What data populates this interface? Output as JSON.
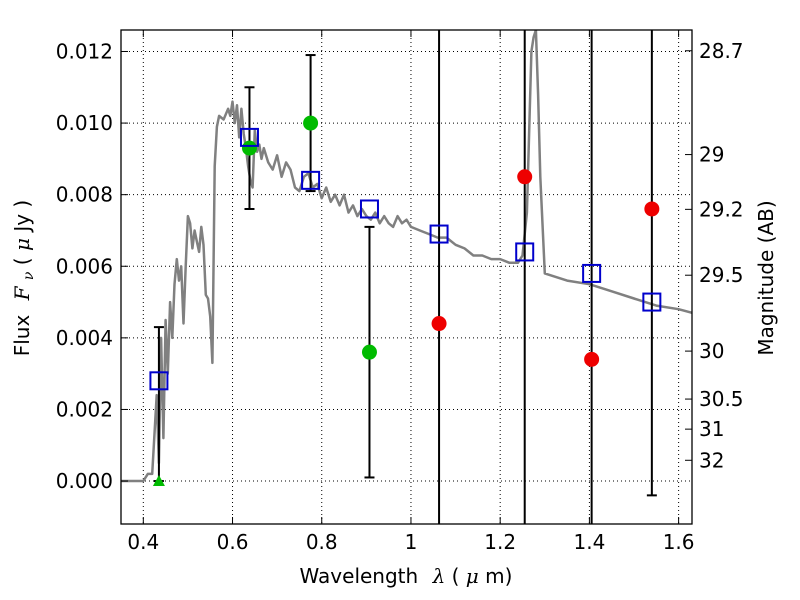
{
  "chart_data": {
    "type": "scatter",
    "xlabel": "Wavelength",
    "xlabel_symbol": "λ",
    "xlabel_unit_open": " (",
    "xlabel_unit_mu": "μ",
    "xlabel_unit_rest": "m)",
    "ylabel": "Flux",
    "ylabel_symbol": "F",
    "ylabel_sub": "ν",
    "ylabel_unit_open": " ( ",
    "ylabel_unit_mu": "μ",
    "ylabel_unit_rest": "Jy )",
    "y2label": "Magnitude (AB)",
    "xlim": [
      0.35,
      1.63
    ],
    "ylim": [
      -0.0012,
      0.0126
    ],
    "grid": true,
    "x_ticks": [
      0.4,
      0.6,
      0.8,
      1.0,
      1.2,
      1.4,
      1.6
    ],
    "x_tick_labels": [
      "0.4",
      "0.6",
      "0.8",
      "1",
      "1.2",
      "1.4",
      "1.6"
    ],
    "y_ticks": [
      0.0,
      0.002,
      0.004,
      0.006,
      0.008,
      0.01,
      0.012
    ],
    "y_tick_labels": [
      "0.000",
      "0.002",
      "0.004",
      "0.006",
      "0.008",
      "0.010",
      "0.012"
    ],
    "mag_ticks": [
      {
        "label": "28.7",
        "flux": 0.01202
      },
      {
        "label": "29",
        "flux": 0.00912
      },
      {
        "label": "29.2",
        "flux": 0.00759
      },
      {
        "label": "29.5",
        "flux": 0.00575
      },
      {
        "label": "30",
        "flux": 0.00363
      },
      {
        "label": "30.5",
        "flux": 0.00229
      },
      {
        "label": "31",
        "flux": 0.00145
      },
      {
        "label": "32",
        "flux": 0.00058
      }
    ],
    "model_sed": {
      "color": "#808080",
      "x": [
        0.35,
        0.4,
        0.41,
        0.42,
        0.43,
        0.435,
        0.44,
        0.445,
        0.45,
        0.455,
        0.46,
        0.465,
        0.47,
        0.475,
        0.48,
        0.485,
        0.49,
        0.495,
        0.5,
        0.505,
        0.51,
        0.515,
        0.52,
        0.525,
        0.53,
        0.535,
        0.54,
        0.545,
        0.55,
        0.555,
        0.56,
        0.565,
        0.57,
        0.58,
        0.59,
        0.595,
        0.6,
        0.605,
        0.61,
        0.615,
        0.62,
        0.625,
        0.63,
        0.635,
        0.64,
        0.645,
        0.65,
        0.655,
        0.66,
        0.665,
        0.67,
        0.68,
        0.69,
        0.7,
        0.71,
        0.72,
        0.73,
        0.74,
        0.75,
        0.76,
        0.77,
        0.78,
        0.79,
        0.8,
        0.81,
        0.82,
        0.83,
        0.84,
        0.85,
        0.86,
        0.87,
        0.88,
        0.89,
        0.9,
        0.91,
        0.92,
        0.93,
        0.94,
        0.95,
        0.96,
        0.97,
        0.98,
        0.99,
        1.0,
        1.02,
        1.04,
        1.06,
        1.08,
        1.1,
        1.12,
        1.14,
        1.16,
        1.18,
        1.2,
        1.22,
        1.24,
        1.25,
        1.26,
        1.265,
        1.27,
        1.275,
        1.28,
        1.285,
        1.29,
        1.3,
        1.35,
        1.4,
        1.45,
        1.5,
        1.55,
        1.6,
        1.63
      ],
      "y": [
        0.0,
        0.0,
        0.0002,
        0.0002,
        0.0024,
        0.0005,
        0.004,
        0.0012,
        0.0045,
        0.003,
        0.005,
        0.004,
        0.0055,
        0.0062,
        0.0056,
        0.006,
        0.0044,
        0.006,
        0.0074,
        0.0072,
        0.0065,
        0.007,
        0.0067,
        0.0064,
        0.0071,
        0.0066,
        0.0052,
        0.0051,
        0.0046,
        0.0033,
        0.0088,
        0.0099,
        0.0102,
        0.0101,
        0.0104,
        0.0102,
        0.0106,
        0.01,
        0.0105,
        0.0096,
        0.0104,
        0.0097,
        0.0093,
        0.0088,
        0.0084,
        0.0082,
        0.0098,
        0.0092,
        0.0094,
        0.009,
        0.0093,
        0.0089,
        0.0087,
        0.0091,
        0.0085,
        0.0089,
        0.0087,
        0.0082,
        0.0081,
        0.0085,
        0.0086,
        0.0082,
        0.0083,
        0.0079,
        0.0082,
        0.0078,
        0.008,
        0.0077,
        0.008,
        0.0075,
        0.0077,
        0.0074,
        0.0076,
        0.0074,
        0.0073,
        0.0075,
        0.0072,
        0.0074,
        0.0072,
        0.0071,
        0.0074,
        0.0072,
        0.0073,
        0.0071,
        0.007,
        0.0069,
        0.0068,
        0.0068,
        0.0066,
        0.0065,
        0.0063,
        0.0063,
        0.0062,
        0.0062,
        0.0061,
        0.0061,
        0.0063,
        0.0075,
        0.0098,
        0.012,
        0.0124,
        0.0126,
        0.0108,
        0.0085,
        0.0058,
        0.0056,
        0.0055,
        0.0053,
        0.0051,
        0.0049,
        0.0048,
        0.0047
      ]
    },
    "error_bars": [
      {
        "x": 0.435,
        "lo": 0.0,
        "hi": 0.0043
      },
      {
        "x": 0.638,
        "lo": 0.0076,
        "hi": 0.011
      },
      {
        "x": 0.775,
        "lo": 0.0081,
        "hi": 0.0119
      },
      {
        "x": 0.907,
        "lo": 0.0001,
        "hi": 0.0071
      },
      {
        "x": 1.063,
        "lo": -0.0012,
        "hi": 0.0126
      },
      {
        "x": 1.255,
        "lo": -0.0012,
        "hi": 0.0126
      },
      {
        "x": 1.405,
        "lo": -0.0012,
        "hi": 0.0126
      },
      {
        "x": 1.54,
        "lo": -0.0004,
        "hi": 0.0126
      }
    ],
    "model_photometry": {
      "color": "#0000cc",
      "marker": "open-square",
      "x": [
        0.435,
        0.638,
        0.775,
        0.907,
        1.063,
        1.255,
        1.405,
        1.54
      ],
      "y": [
        0.0028,
        0.0096,
        0.0084,
        0.0076,
        0.0069,
        0.0064,
        0.0058,
        0.005
      ]
    },
    "detections": {
      "color": "#00bb00",
      "marker": "circle",
      "x": [
        0.638,
        0.775,
        0.907
      ],
      "y": [
        0.0093,
        0.01,
        0.0036
      ]
    },
    "non_detections": {
      "color": "#ee0000",
      "marker": "circle",
      "x": [
        1.063,
        1.255,
        1.405,
        1.54
      ],
      "y": [
        0.0044,
        0.0085,
        0.0034,
        0.0076
      ]
    },
    "upper_limit": {
      "color": "#00bb00",
      "marker": "triangle-up",
      "x": [
        0.435
      ],
      "y": [
        0.0
      ]
    }
  }
}
